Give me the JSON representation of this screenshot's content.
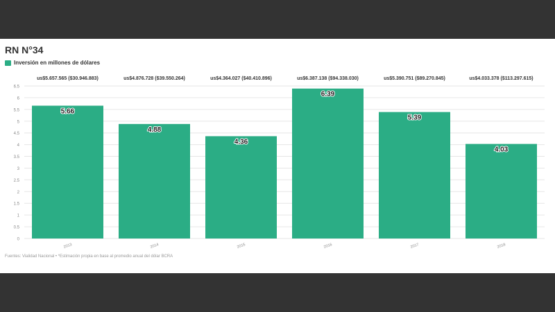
{
  "chart_data": {
    "type": "bar",
    "title": "RN N°34",
    "legend": [
      "Inversión en millones de dólares"
    ],
    "legend_position": "top-left",
    "categories": [
      "2013",
      "2014",
      "2015",
      "2016",
      "2017",
      "2018"
    ],
    "series": [
      {
        "name": "Inversión en millones de dólares",
        "values": [
          5.66,
          4.88,
          4.36,
          6.39,
          5.39,
          4.03
        ]
      }
    ],
    "bar_top_labels": [
      "us$5.657.565 ($30.946.883)",
      "us$4.876.728 ($39.550.264)",
      "us$4.364.027 ($40.410.896)",
      "us$6.387.138 ($94.338.030)",
      "us$5.390.751 ($89.270.845)",
      "us$4.033.378 ($113.297.615)"
    ],
    "data_labels": [
      "5.66",
      "4.88",
      "4.36",
      "6.39",
      "5.39",
      "4.03"
    ],
    "y_ticks": [
      "0",
      "0.5",
      "1",
      "1.5",
      "2",
      "2.5",
      "3",
      "3.5",
      "4",
      "4.5",
      "5",
      "5.5",
      "6",
      "6.5"
    ],
    "ylim": [
      0,
      6.5
    ],
    "grid": true,
    "source": "Fuentes: Vialidad Nacional • *Estimación propia en base al promedio anual del dólar BCRA"
  },
  "colors": {
    "bar": "#2bad85",
    "background": "#333333",
    "panel": "#ffffff",
    "grid": "#e6e6e6",
    "text": "#333333"
  }
}
